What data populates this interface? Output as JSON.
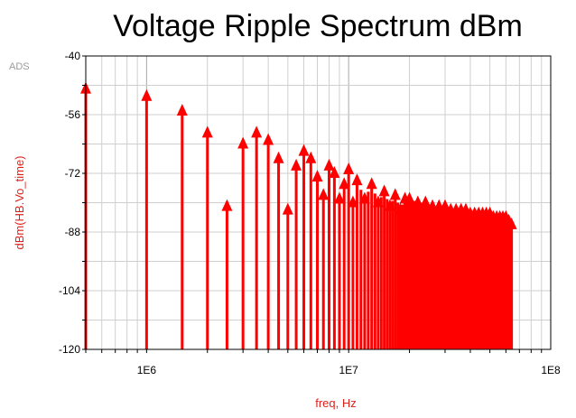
{
  "chart_data": {
    "type": "stem",
    "title": "Voltage Ripple Spectrum dBm",
    "watermark": "ADS",
    "xlabel": "freq, Hz",
    "ylabel": "dBm(HB.Vo_time)",
    "x_scale": "log",
    "xlim": [
      500000,
      100000000
    ],
    "ylim": [
      -120,
      -40
    ],
    "y_ticks": [
      -40,
      -56,
      -72,
      -88,
      -104,
      -120
    ],
    "x_tick_labels": [
      {
        "value": 1000000,
        "label": "1E6"
      },
      {
        "value": 10000000,
        "label": "1E7"
      },
      {
        "value": 100000000,
        "label": "1E8"
      }
    ],
    "grid": true,
    "color": "#ff0000",
    "harmonic_spacing_hz": 500000,
    "series": [
      {
        "x": [
          500000,
          1000000,
          1500000,
          2000000,
          2500000,
          3000000,
          3500000,
          4000000,
          4500000,
          5000000,
          5500000,
          6000000,
          6500000,
          7000000,
          7500000,
          8000000,
          8500000,
          9000000,
          9500000,
          10000000,
          10500000,
          11000000,
          12000000,
          13000000,
          14000000,
          15000000,
          16000000,
          17000000,
          18000000,
          19000000,
          20000000,
          22000000,
          24000000,
          26000000,
          28000000,
          30000000,
          32000000,
          34000000,
          36000000,
          38000000,
          40000000,
          42000000,
          44000000,
          46000000,
          48000000,
          50000000,
          52000000,
          54000000,
          56000000,
          58000000,
          60000000,
          62000000,
          64000000
        ],
        "y": [
          -49,
          -51,
          -55,
          -61,
          -81,
          -64,
          -61,
          -63,
          -68,
          -82,
          -70,
          -66,
          -68,
          -73,
          -78,
          -70,
          -72,
          -79,
          -75,
          -71,
          -80,
          -74,
          -79,
          -75,
          -80,
          -77,
          -81,
          -78,
          -82,
          -79,
          -79,
          -80,
          -80,
          -81,
          -81,
          -81,
          -82,
          -82,
          -82,
          -82,
          -83,
          -83,
          -83,
          -83,
          -83,
          -83,
          -84,
          -84,
          -84,
          -84,
          -84,
          -85,
          -86
        ]
      }
    ]
  }
}
